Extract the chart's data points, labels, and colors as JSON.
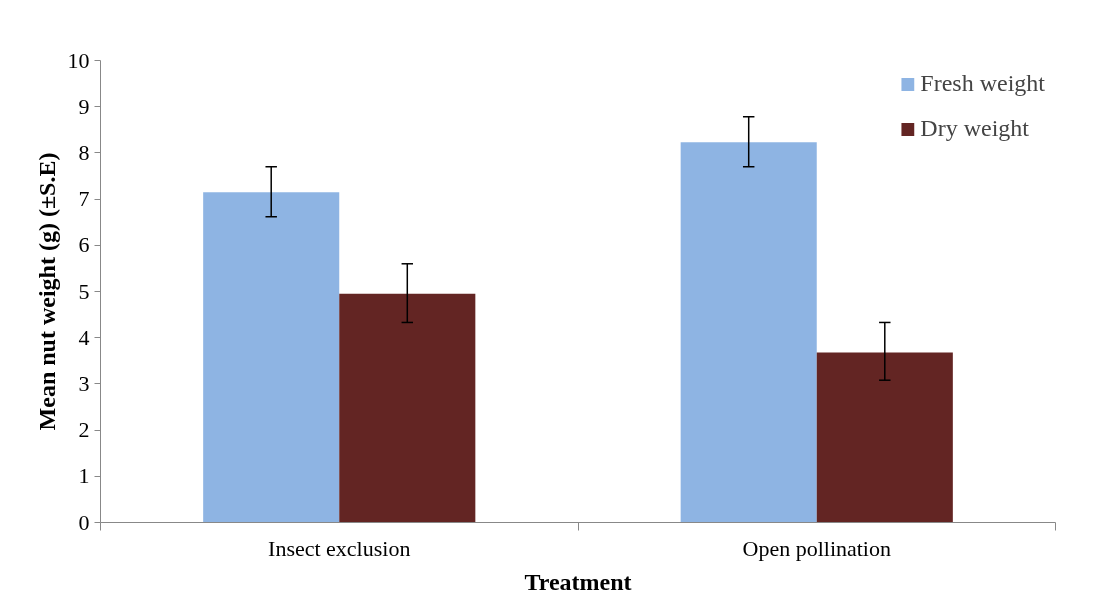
{
  "chart_data": {
    "type": "bar",
    "xlabel": "Treatment",
    "ylabel": "Mean nut weight (g) (±S.E)",
    "categories": [
      "Insect exclusion",
      "Open pollination"
    ],
    "series": [
      {
        "name": "Fresh weight",
        "color": "#8eb4e3",
        "values": [
          7.15,
          8.23
        ],
        "errors": [
          [
            6.62,
            7.7
          ],
          [
            7.7,
            8.78
          ]
        ]
      },
      {
        "name": "Dry weight",
        "color": "#632523",
        "values": [
          4.95,
          3.68
        ],
        "errors": [
          [
            4.33,
            5.6
          ],
          [
            3.08,
            4.33
          ]
        ]
      }
    ],
    "ylim": [
      0,
      10
    ],
    "yticks": [
      0,
      1,
      2,
      3,
      4,
      5,
      6,
      7,
      8,
      9,
      10
    ],
    "grid": false,
    "legend": "top right"
  }
}
